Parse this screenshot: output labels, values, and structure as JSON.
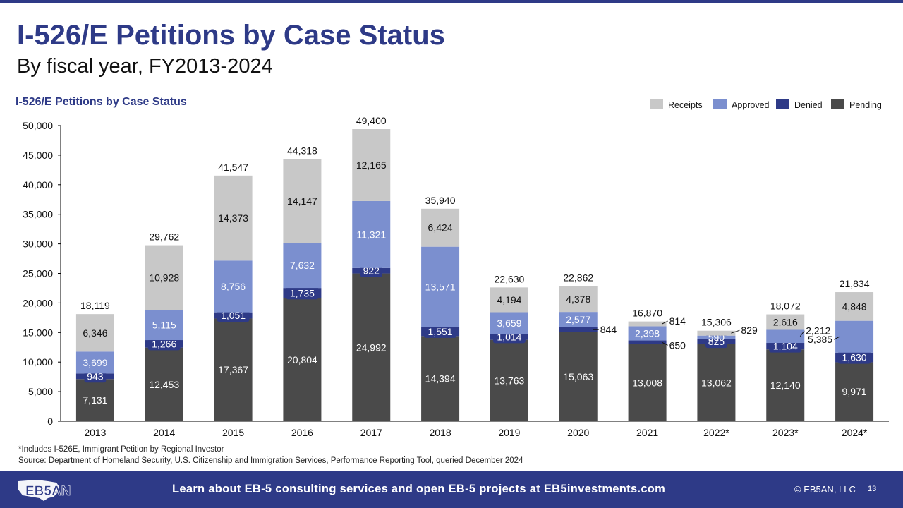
{
  "header": {
    "title": "I-526/E Petitions by Case Status",
    "subtitle": "By fiscal year, FY2013-2024"
  },
  "chart_data": {
    "type": "bar",
    "stacked": true,
    "title": "I-526/E Petitions by Case Status",
    "xlabel": "",
    "ylabel": "",
    "ylim": [
      0,
      50000
    ],
    "yticks": [
      0,
      5000,
      10000,
      15000,
      20000,
      25000,
      30000,
      35000,
      40000,
      45000,
      50000
    ],
    "ytick_labels": [
      "0",
      "5,000",
      "10,000",
      "15,000",
      "20,000",
      "25,000",
      "30,000",
      "35,000",
      "40,000",
      "45,000",
      "50,000"
    ],
    "grid": false,
    "legend_position": "top-right",
    "categories": [
      "2013",
      "2014",
      "2015",
      "2016",
      "2017",
      "2018",
      "2019",
      "2020",
      "2021",
      "2022*",
      "2023*",
      "2024*"
    ],
    "series": [
      {
        "name": "Pending",
        "color": "#4a4a4a",
        "label_color": "#ffffff",
        "values": [
          7131,
          12453,
          17367,
          20804,
          24992,
          14394,
          13763,
          15063,
          13008,
          13062,
          12140,
          9971
        ],
        "labels": [
          "7,131",
          "12,453",
          "17,367",
          "20,804",
          "24,992",
          "14,394",
          "13,763",
          "15,063",
          "13,008",
          "13,062",
          "12,140",
          "9,971"
        ]
      },
      {
        "name": "Denied",
        "color": "#2e3a87",
        "label_color": "#ffffff",
        "values": [
          943,
          1266,
          1051,
          1735,
          922,
          1551,
          1014,
          844,
          650,
          825,
          1104,
          1630
        ],
        "labels": [
          "943",
          "1,266",
          "1,051",
          "1,735",
          "922",
          "1,551",
          "1,014",
          "844",
          "650",
          "825",
          "1,104",
          "1,630"
        ]
      },
      {
        "name": "Approved",
        "color": "#7b8fcf",
        "label_color": "#ffffff",
        "values": [
          3699,
          5115,
          8756,
          7632,
          11321,
          13571,
          3659,
          2577,
          2398,
          590,
          2212,
          5385
        ],
        "labels": [
          "3,699",
          "5,115",
          "8,756",
          "7,632",
          "11,321",
          "13,571",
          "3,659",
          "2,577",
          "2,398",
          "590",
          "2,212",
          "5,385"
        ]
      },
      {
        "name": "Receipts",
        "color": "#c8c8c8",
        "label_color": "#111111",
        "values": [
          6346,
          10928,
          14373,
          14147,
          12165,
          6424,
          4194,
          4378,
          814,
          829,
          2616,
          4848
        ],
        "labels": [
          "6,346",
          "10,928",
          "14,373",
          "14,147",
          "12,165",
          "6,424",
          "4,194",
          "4,378",
          "814",
          "829",
          "2,616",
          "4,848"
        ]
      }
    ],
    "totals": [
      18119,
      29762,
      41547,
      44318,
      49400,
      35940,
      22630,
      22862,
      16870,
      15306,
      18072,
      21834
    ],
    "total_labels": [
      "18,119",
      "29,762",
      "41,547",
      "44,318",
      "49,400",
      "35,940",
      "22,630",
      "22,862",
      "16,870",
      "15,306",
      "18,072",
      "21,834"
    ],
    "legend_order": [
      "Receipts",
      "Approved",
      "Denied",
      "Pending"
    ]
  },
  "footnotes": {
    "line1": "*Includes I-526E, Immigrant Petition by Regional Investor",
    "line2": "Source: Department of Homeland Security, U.S. Citizenship and Immigration Services, Performance Reporting Tool, queried December 2024"
  },
  "footer": {
    "logo_text": "EB5AN",
    "tagline": "Learn about EB-5 consulting services and open EB-5 projects at EB5investments.com",
    "copyright": "© EB5AN, LLC",
    "page_number": "13",
    "brand_color": "#2e3a87"
  }
}
